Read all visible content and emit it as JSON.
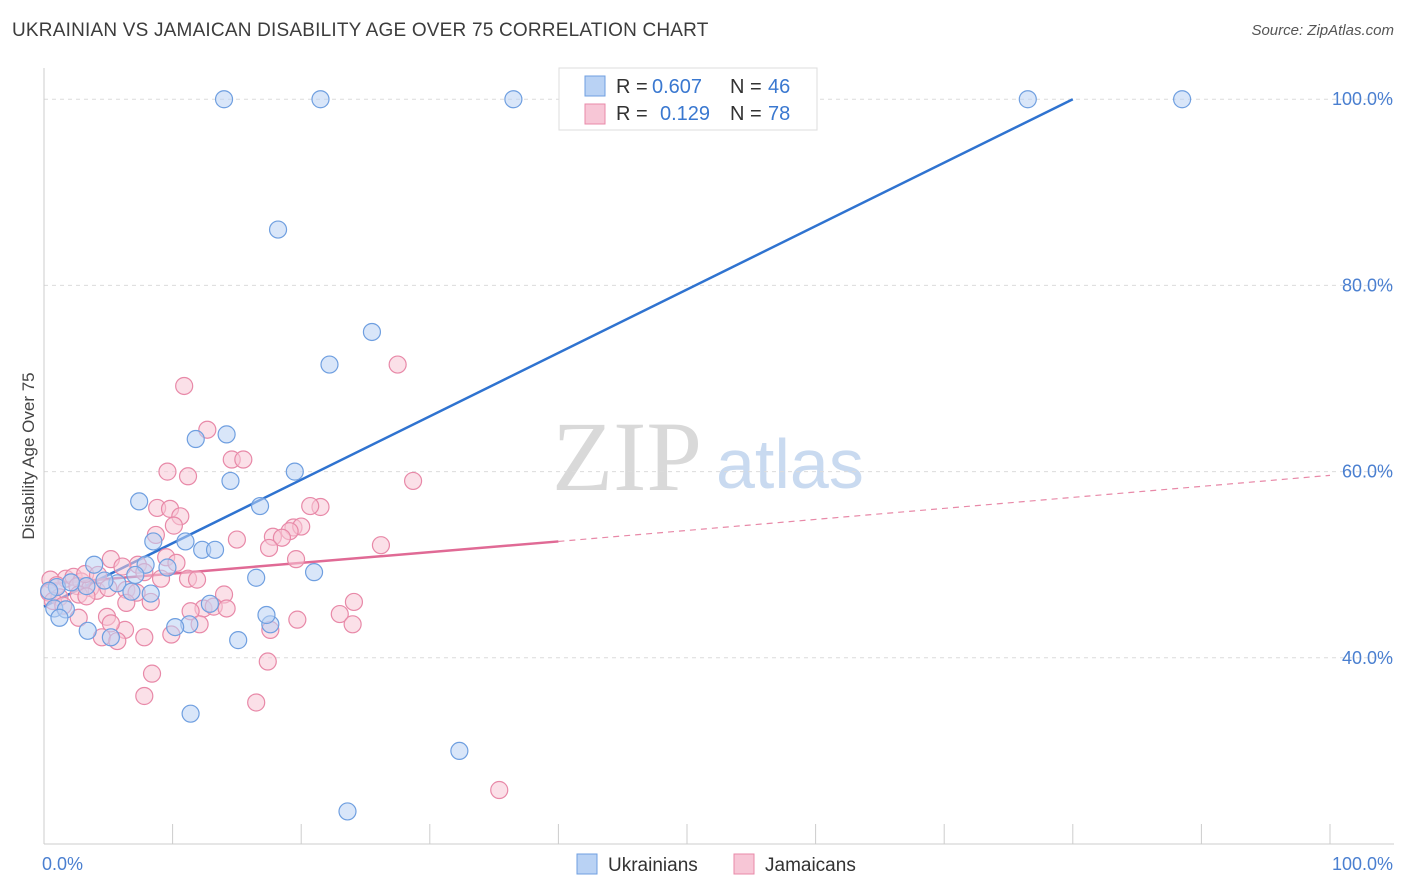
{
  "title": "UKRAINIAN VS JAMAICAN DISABILITY AGE OVER 75 CORRELATION CHART",
  "source": "Source: ZipAtlas.com",
  "watermark": {
    "zip": "ZIP",
    "atlas": "atlas"
  },
  "legend_box": {
    "rows": [
      {
        "r_label": "R =",
        "r_value": "0.607",
        "n_label": "N =",
        "n_value": "46"
      },
      {
        "r_label": "R =",
        "r_value": "0.129",
        "n_label": "N =",
        "n_value": "78"
      }
    ]
  },
  "bottom_legend": [
    "Ukrainians",
    "Jamaicans"
  ],
  "chart_data": {
    "type": "scatter",
    "title": "UKRAINIAN VS JAMAICAN DISABILITY AGE OVER 75 CORRELATION CHART",
    "xlabel": "",
    "ylabel": "Disability Age Over 75",
    "xlim": [
      0,
      100
    ],
    "ylim": [
      20,
      104
    ],
    "x_tick_labels": [
      {
        "value": 0,
        "label": "0.0%"
      },
      {
        "value": 100,
        "label": "100.0%"
      }
    ],
    "y_ticks": [
      {
        "value": 40,
        "label": "40.0%"
      },
      {
        "value": 60,
        "label": "60.0%"
      },
      {
        "value": 80,
        "label": "80.0%"
      },
      {
        "value": 100,
        "label": "100.0%"
      }
    ],
    "grid": "horizontal dashed",
    "legend_placement": "top-center",
    "series": [
      {
        "name": "Ukrainians",
        "color": "#6f9fe0",
        "fill": "#b9d2f4",
        "r": 0.607,
        "n": 46,
        "trend": {
          "x0": 0,
          "y0": 45.5,
          "x1": 80,
          "y1": 100
        },
        "points": [
          [
            14.0,
            100
          ],
          [
            21.5,
            100
          ],
          [
            36.5,
            100
          ],
          [
            76.5,
            100
          ],
          [
            88.5,
            100
          ],
          [
            18.2,
            86.0
          ],
          [
            25.5,
            75.0
          ],
          [
            22.2,
            71.5
          ],
          [
            14.2,
            64.0
          ],
          [
            11.8,
            63.5
          ],
          [
            14.5,
            59.0
          ],
          [
            19.5,
            60.0
          ],
          [
            16.8,
            56.3
          ],
          [
            7.4,
            56.8
          ],
          [
            8.5,
            52.5
          ],
          [
            11.0,
            52.5
          ],
          [
            12.3,
            51.6
          ],
          [
            13.3,
            51.6
          ],
          [
            16.5,
            48.6
          ],
          [
            21.0,
            49.2
          ],
          [
            3.9,
            50.0
          ],
          [
            7.9,
            50.0
          ],
          [
            7.1,
            48.9
          ],
          [
            5.7,
            48.0
          ],
          [
            3.3,
            47.7
          ],
          [
            1.0,
            47.6
          ],
          [
            6.8,
            47.1
          ],
          [
            8.3,
            46.9
          ],
          [
            0.8,
            45.3
          ],
          [
            1.7,
            45.2
          ],
          [
            12.9,
            45.8
          ],
          [
            1.2,
            44.3
          ],
          [
            17.6,
            43.6
          ],
          [
            11.3,
            43.6
          ],
          [
            10.2,
            43.3
          ],
          [
            3.4,
            42.9
          ],
          [
            5.2,
            42.2
          ],
          [
            15.1,
            41.9
          ],
          [
            17.3,
            44.6
          ],
          [
            11.4,
            34.0
          ],
          [
            32.3,
            30.0
          ],
          [
            23.6,
            23.5
          ],
          [
            0.4,
            47.2
          ],
          [
            2.1,
            48.1
          ],
          [
            9.6,
            49.7
          ],
          [
            4.7,
            48.3
          ]
        ]
      },
      {
        "name": "Jamaicans",
        "color": "#e889a8",
        "fill": "#f7c6d6",
        "r": 0.129,
        "n": 78,
        "trend": {
          "x0": 0,
          "y0": 47.9,
          "x1": 40,
          "y1": 52.5
        },
        "trend_dashed": {
          "x0": 40,
          "y0": 52.5,
          "x1": 100,
          "y1": 59.6
        },
        "points": [
          [
            27.5,
            71.5
          ],
          [
            10.9,
            69.2
          ],
          [
            12.7,
            64.5
          ],
          [
            14.6,
            61.3
          ],
          [
            15.5,
            61.3
          ],
          [
            9.6,
            60.0
          ],
          [
            11.2,
            59.5
          ],
          [
            28.7,
            59.0
          ],
          [
            21.5,
            56.2
          ],
          [
            8.8,
            56.1
          ],
          [
            9.8,
            56.0
          ],
          [
            10.6,
            55.2
          ],
          [
            10.1,
            54.2
          ],
          [
            19.4,
            54.0
          ],
          [
            20.0,
            54.1
          ],
          [
            19.1,
            53.6
          ],
          [
            8.7,
            53.2
          ],
          [
            15.0,
            52.7
          ],
          [
            17.8,
            53.0
          ],
          [
            18.5,
            52.9
          ],
          [
            26.2,
            52.1
          ],
          [
            17.5,
            51.8
          ],
          [
            9.5,
            50.8
          ],
          [
            7.3,
            50.0
          ],
          [
            10.3,
            50.2
          ],
          [
            19.6,
            50.6
          ],
          [
            5.2,
            50.6
          ],
          [
            6.1,
            49.8
          ],
          [
            7.8,
            49.2
          ],
          [
            9.1,
            48.5
          ],
          [
            11.2,
            48.5
          ],
          [
            1.7,
            48.5
          ],
          [
            2.3,
            48.7
          ],
          [
            2.9,
            48.2
          ],
          [
            0.5,
            48.4
          ],
          [
            1.0,
            47.8
          ],
          [
            2.6,
            47.7
          ],
          [
            3.6,
            47.5
          ],
          [
            4.1,
            47.2
          ],
          [
            5.0,
            47.5
          ],
          [
            6.4,
            47.3
          ],
          [
            7.2,
            47.0
          ],
          [
            0.4,
            47.0
          ],
          [
            1.2,
            46.5
          ],
          [
            2.7,
            46.8
          ],
          [
            3.3,
            46.6
          ],
          [
            0.7,
            46.1
          ],
          [
            1.5,
            45.6
          ],
          [
            14.0,
            46.8
          ],
          [
            8.3,
            46.0
          ],
          [
            6.4,
            45.9
          ],
          [
            2.7,
            44.3
          ],
          [
            4.9,
            44.4
          ],
          [
            12.4,
            45.3
          ],
          [
            13.2,
            45.5
          ],
          [
            11.4,
            45.0
          ],
          [
            14.2,
            45.3
          ],
          [
            24.1,
            46.0
          ],
          [
            23.0,
            44.7
          ],
          [
            19.7,
            44.1
          ],
          [
            12.1,
            43.6
          ],
          [
            6.3,
            43.0
          ],
          [
            5.2,
            43.7
          ],
          [
            17.6,
            43.0
          ],
          [
            24.0,
            43.6
          ],
          [
            4.5,
            42.2
          ],
          [
            5.7,
            41.8
          ],
          [
            7.8,
            42.2
          ],
          [
            17.4,
            39.6
          ],
          [
            8.4,
            38.3
          ],
          [
            7.8,
            35.9
          ],
          [
            16.5,
            35.2
          ],
          [
            35.4,
            25.8
          ],
          [
            3.2,
            49.0
          ],
          [
            4.2,
            48.9
          ],
          [
            20.7,
            56.3
          ],
          [
            9.9,
            42.5
          ],
          [
            11.9,
            48.4
          ]
        ]
      }
    ]
  }
}
